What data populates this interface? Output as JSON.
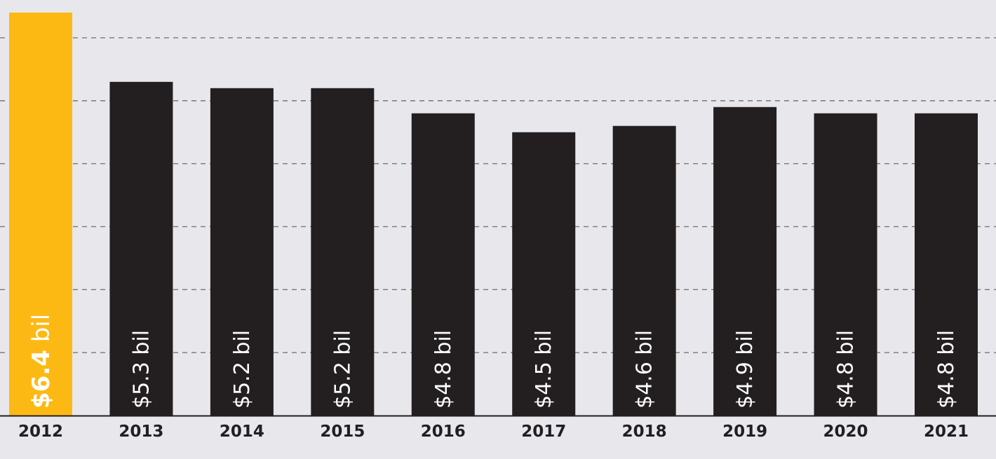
{
  "chart_data": {
    "type": "bar",
    "categories": [
      "2012",
      "2013",
      "2014",
      "2015",
      "2016",
      "2017",
      "2018",
      "2019",
      "2020",
      "2021"
    ],
    "values": [
      6.4,
      5.3,
      5.2,
      5.2,
      4.8,
      4.5,
      4.6,
      4.9,
      4.8,
      4.8
    ],
    "value_labels": [
      {
        "amount": "$6.4",
        "unit": " bil"
      },
      {
        "amount": "$5.3",
        "unit": " bil"
      },
      {
        "amount": "$5.2",
        "unit": " bil"
      },
      {
        "amount": "$5.2",
        "unit": " bil"
      },
      {
        "amount": "$4.8",
        "unit": " bil"
      },
      {
        "amount": "$4.5",
        "unit": " bil"
      },
      {
        "amount": "$4.6",
        "unit": " bil"
      },
      {
        "amount": "$4.9",
        "unit": " bil"
      },
      {
        "amount": "$4.8",
        "unit": " bil"
      },
      {
        "amount": "$4.8",
        "unit": " bil"
      }
    ],
    "highlight_index": 0,
    "highlight_color": "#fdb913",
    "bar_color": "#231f20",
    "background_color": "#e8e7ec",
    "gridline_color": "#777777",
    "gridlines": [
      1,
      2,
      3,
      4,
      5,
      6
    ],
    "grid": true,
    "ylim": [
      0,
      6.6
    ],
    "title": "",
    "xlabel": "",
    "ylabel": ""
  }
}
